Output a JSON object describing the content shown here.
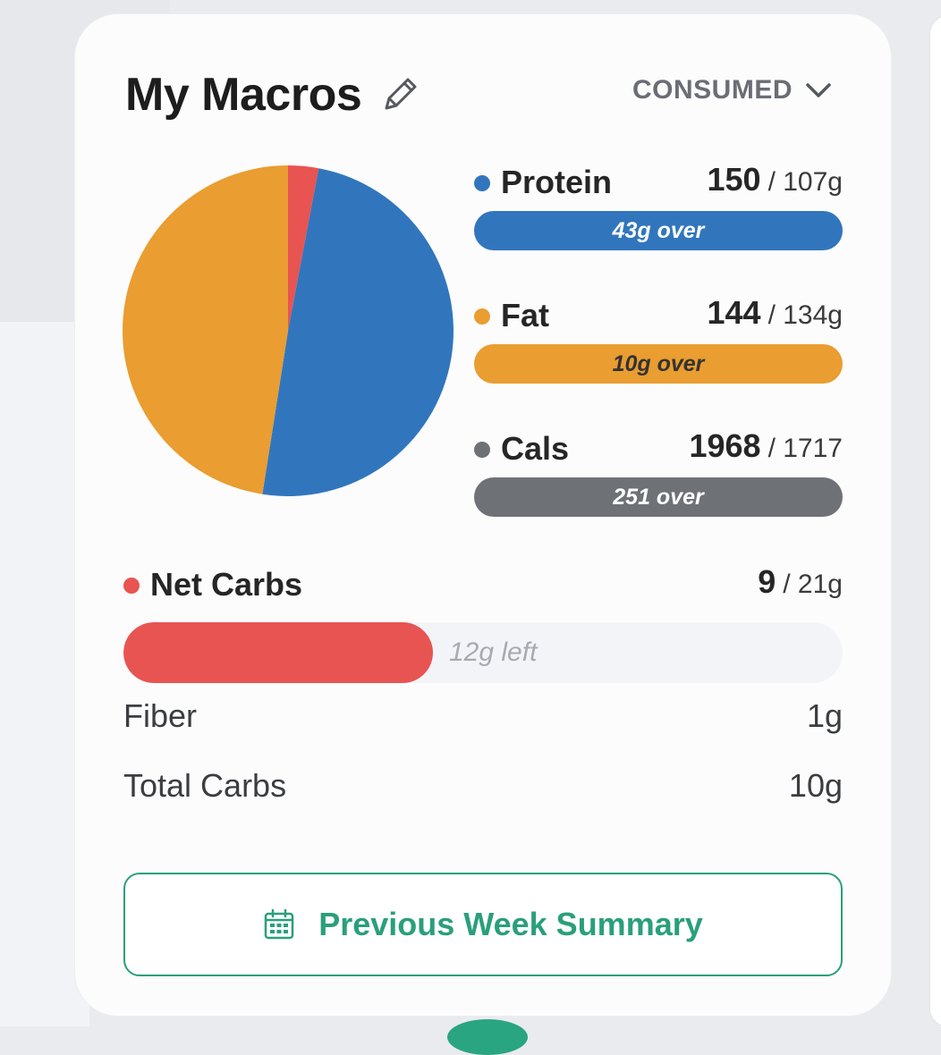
{
  "header": {
    "title": "My Macros",
    "filter_label": "CONSUMED"
  },
  "icons": {
    "edit": "pencil-icon",
    "dropdown": "chevron-down-icon",
    "calendar": "calendar-icon"
  },
  "colors": {
    "protein": "#3176bd",
    "fat": "#ea9d30",
    "cals": "#6e7176",
    "net_carbs": "#e85452",
    "accent": "#2a9f7c"
  },
  "macros": [
    {
      "name": "Protein",
      "consumed": "150",
      "goal": "/ 107g",
      "status": "43g over",
      "fill": 1.0
    },
    {
      "name": "Fat",
      "consumed": "144",
      "goal": "/ 134g",
      "status": "10g over",
      "fill": 1.0
    },
    {
      "name": "Cals",
      "consumed": "1968",
      "goal": "/ 1717",
      "status": "251 over",
      "fill": 1.0
    }
  ],
  "net_carbs": {
    "name": "Net Carbs",
    "consumed": "9",
    "goal": "/ 21g",
    "status": "12g left",
    "fill": 0.43
  },
  "details": [
    {
      "label": "Fiber",
      "value": "1g"
    },
    {
      "label": "Total Carbs",
      "value": "10g"
    }
  ],
  "summary_button": {
    "label": "Previous Week Summary"
  },
  "chart_data": {
    "type": "pie",
    "labels": [
      "Net Carbs",
      "Protein",
      "Fat"
    ],
    "values": [
      9,
      150,
      144
    ],
    "units": "grams",
    "colors": [
      "#e85452",
      "#3176bd",
      "#ea9d30"
    ]
  }
}
